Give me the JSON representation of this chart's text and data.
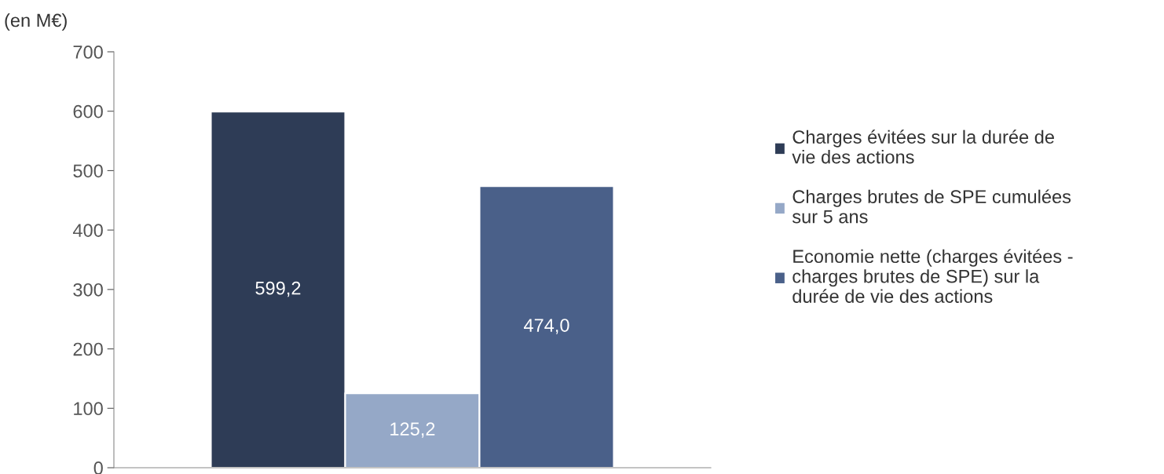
{
  "chart_data": {
    "type": "bar",
    "ylabel": "(en M€)",
    "categories": [
      null
    ],
    "series": [
      {
        "name": "Charges évitées sur la durée de vie des actions",
        "color": "#2e3c56",
        "values": [
          599.2
        ],
        "value_labels": [
          "599,2"
        ]
      },
      {
        "name": "Charges brutes de SPE cumulées sur 5 ans",
        "color": "#95a8c7",
        "values": [
          125.2
        ],
        "value_labels": [
          "125,2"
        ]
      },
      {
        "name": "Economie nette (charges évitées - charges brutes de SPE) sur la durée de vie des actions",
        "color": "#4a6089",
        "values": [
          474.0
        ],
        "value_labels": [
          "474,0"
        ]
      }
    ],
    "ylim": [
      0,
      700
    ],
    "yticks": [
      0,
      100,
      200,
      300,
      400,
      500,
      600,
      700
    ],
    "grid": false,
    "legend": "right"
  }
}
